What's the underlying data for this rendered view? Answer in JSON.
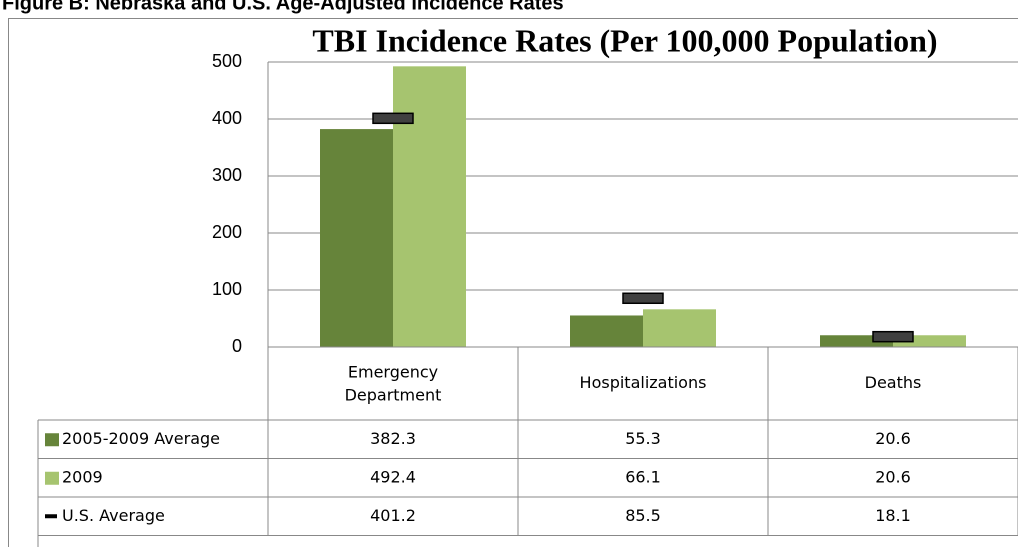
{
  "header": "Figure B: Nebraska and U.S. Age-Adjusted Incidence Rates",
  "chart_data": {
    "type": "bar",
    "title": "TBI Incidence Rates (Per 100,000 Population)",
    "categories": [
      "Emergency Department",
      "Hospitalizations",
      "Deaths"
    ],
    "series": [
      {
        "name": "2005-2009 Average",
        "color": "#66843a",
        "values": [
          382.3,
          55.3,
          20.6
        ]
      },
      {
        "name": "2009",
        "color": "#a6c46f",
        "values": [
          492.4,
          66.1,
          20.6
        ]
      },
      {
        "name": "U.S. Average",
        "color": "#404040",
        "marker": "dash",
        "values": [
          401.2,
          85.5,
          18.1
        ]
      }
    ],
    "ylim": [
      0,
      500
    ],
    "yticks": [
      0,
      100,
      200,
      300,
      400,
      500
    ],
    "grid": true,
    "data_table": true
  }
}
